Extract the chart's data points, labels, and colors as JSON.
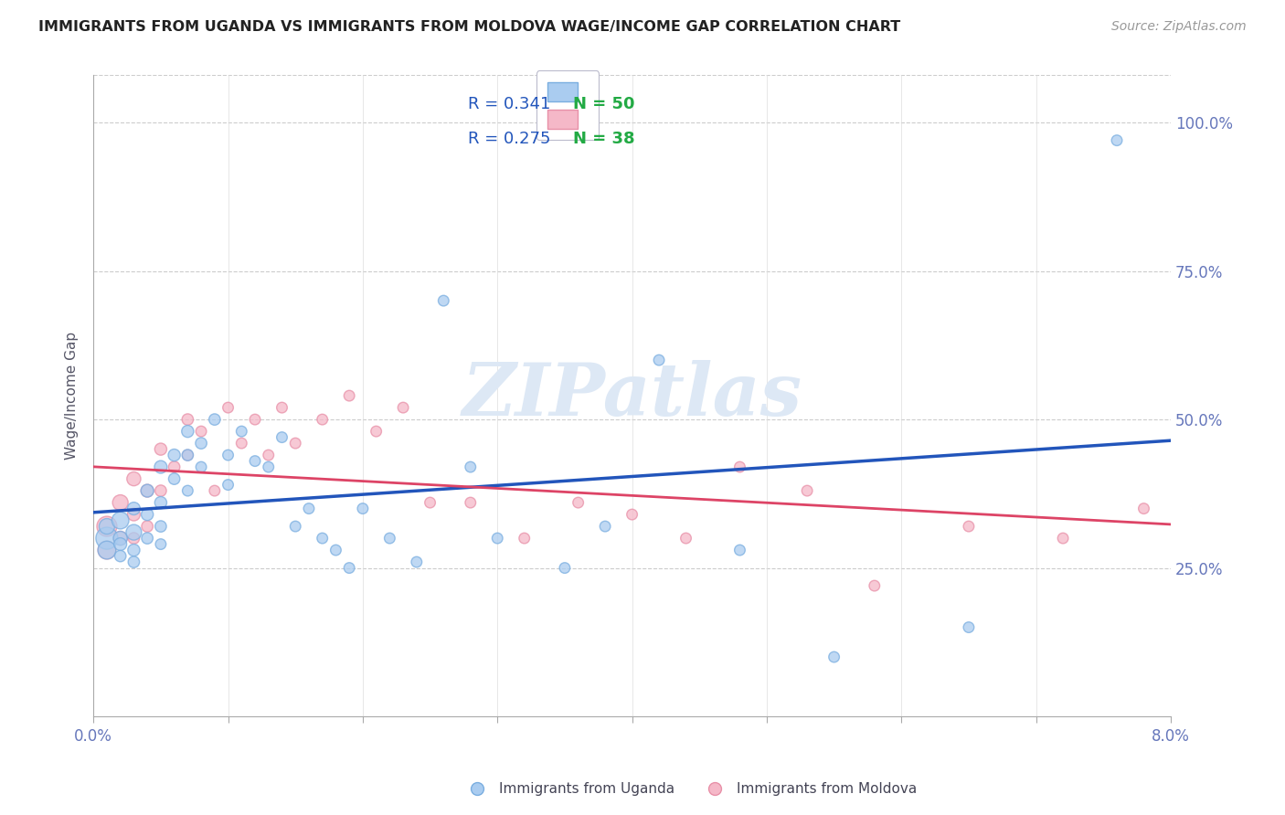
{
  "title": "IMMIGRANTS FROM UGANDA VS IMMIGRANTS FROM MOLDOVA WAGE/INCOME GAP CORRELATION CHART",
  "source": "Source: ZipAtlas.com",
  "ylabel": "Wage/Income Gap",
  "yticks": [
    "25.0%",
    "50.0%",
    "75.0%",
    "100.0%"
  ],
  "ytick_vals": [
    0.25,
    0.5,
    0.75,
    1.0
  ],
  "xlim": [
    0.0,
    0.08
  ],
  "ylim": [
    0.0,
    1.08
  ],
  "legend_r1": "R = 0.341",
  "legend_n1": "N = 50",
  "legend_r2": "R = 0.275",
  "legend_n2": "N = 38",
  "color_uganda": "#aaccf0",
  "color_moldova": "#f5b8c8",
  "edge_uganda": "#7aaee0",
  "edge_moldova": "#e890a8",
  "trendline_color_uganda": "#2255bb",
  "trendline_color_moldova": "#dd4466",
  "watermark_color": "#dde8f5",
  "legend_r_color": "#2255bb",
  "legend_n_color": "#22aa44",
  "uganda_x": [
    0.001,
    0.001,
    0.001,
    0.002,
    0.002,
    0.002,
    0.002,
    0.003,
    0.003,
    0.003,
    0.003,
    0.004,
    0.004,
    0.004,
    0.005,
    0.005,
    0.005,
    0.005,
    0.006,
    0.006,
    0.007,
    0.007,
    0.007,
    0.008,
    0.008,
    0.009,
    0.01,
    0.01,
    0.011,
    0.012,
    0.013,
    0.014,
    0.015,
    0.016,
    0.017,
    0.018,
    0.019,
    0.02,
    0.022,
    0.024,
    0.026,
    0.028,
    0.03,
    0.035,
    0.038,
    0.042,
    0.048,
    0.055,
    0.065,
    0.076
  ],
  "uganda_y": [
    0.3,
    0.28,
    0.32,
    0.33,
    0.3,
    0.29,
    0.27,
    0.31,
    0.35,
    0.28,
    0.26,
    0.38,
    0.34,
    0.3,
    0.42,
    0.36,
    0.32,
    0.29,
    0.44,
    0.4,
    0.48,
    0.44,
    0.38,
    0.46,
    0.42,
    0.5,
    0.44,
    0.39,
    0.48,
    0.43,
    0.42,
    0.47,
    0.32,
    0.35,
    0.3,
    0.28,
    0.25,
    0.35,
    0.3,
    0.26,
    0.7,
    0.42,
    0.3,
    0.25,
    0.32,
    0.6,
    0.28,
    0.1,
    0.15,
    0.97
  ],
  "uganda_size": [
    300,
    200,
    150,
    180,
    120,
    100,
    80,
    150,
    100,
    90,
    80,
    100,
    90,
    80,
    100,
    90,
    80,
    70,
    90,
    80,
    90,
    80,
    70,
    80,
    70,
    80,
    70,
    70,
    70,
    70,
    70,
    70,
    70,
    70,
    70,
    70,
    70,
    70,
    70,
    70,
    70,
    70,
    70,
    70,
    70,
    70,
    70,
    70,
    70,
    70
  ],
  "moldova_x": [
    0.001,
    0.001,
    0.002,
    0.002,
    0.003,
    0.003,
    0.003,
    0.004,
    0.004,
    0.005,
    0.005,
    0.006,
    0.007,
    0.007,
    0.008,
    0.009,
    0.01,
    0.011,
    0.012,
    0.013,
    0.014,
    0.015,
    0.017,
    0.019,
    0.021,
    0.023,
    0.025,
    0.028,
    0.032,
    0.036,
    0.04,
    0.044,
    0.048,
    0.053,
    0.058,
    0.065,
    0.072,
    0.078
  ],
  "moldova_y": [
    0.32,
    0.28,
    0.36,
    0.3,
    0.4,
    0.34,
    0.3,
    0.38,
    0.32,
    0.45,
    0.38,
    0.42,
    0.5,
    0.44,
    0.48,
    0.38,
    0.52,
    0.46,
    0.5,
    0.44,
    0.52,
    0.46,
    0.5,
    0.54,
    0.48,
    0.52,
    0.36,
    0.36,
    0.3,
    0.36,
    0.34,
    0.3,
    0.42,
    0.38,
    0.22,
    0.32,
    0.3,
    0.35
  ],
  "moldova_size": [
    250,
    200,
    150,
    120,
    120,
    100,
    80,
    100,
    80,
    90,
    80,
    80,
    80,
    70,
    70,
    70,
    70,
    70,
    70,
    70,
    70,
    70,
    70,
    70,
    70,
    70,
    70,
    70,
    70,
    70,
    70,
    70,
    70,
    70,
    70,
    70,
    70,
    70
  ]
}
